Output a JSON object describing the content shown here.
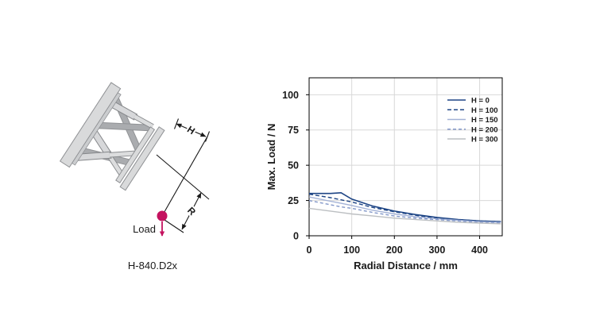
{
  "diagram": {
    "caption": "H-840.D2x",
    "load_label": "Load",
    "dim_h_label": "H",
    "dim_r_label": "R",
    "accent_color": "#c4125f",
    "body_fill": "#d9dadb",
    "body_stroke": "#8f9194"
  },
  "chart_data": {
    "type": "line",
    "title": "",
    "xlabel": "Radial Distance / mm",
    "ylabel": "Max. Load / N",
    "xlim": [
      0,
      453
    ],
    "ylim": [
      0,
      112
    ],
    "xticks": [
      0,
      100,
      200,
      300,
      400
    ],
    "yticks": [
      0,
      25,
      50,
      75,
      100
    ],
    "grid": true,
    "grid_color": "#d8d8d8",
    "legend_position": "top-right",
    "x": [
      0,
      50,
      75,
      100,
      150,
      200,
      250,
      300,
      350,
      400,
      450
    ],
    "series": [
      {
        "name": "H = 0",
        "color": "#1e4585",
        "dash": "",
        "width": 1.6,
        "values": [
          30,
          30,
          30.5,
          26,
          21,
          17.5,
          15,
          13,
          11.5,
          10.5,
          10
        ]
      },
      {
        "name": "H = 100",
        "color": "#1e4585",
        "dash": "5,3",
        "width": 1.4,
        "values": [
          29.5,
          27,
          25.5,
          24,
          20,
          17,
          14.5,
          12.5,
          11.5,
          10.5,
          10
        ]
      },
      {
        "name": "H = 150",
        "color": "#a3b2d6",
        "dash": "",
        "width": 1.4,
        "values": [
          27.5,
          24.5,
          23,
          21.5,
          18,
          15.5,
          13.5,
          12,
          11,
          10,
          9.5
        ]
      },
      {
        "name": "H = 200",
        "color": "#8297c9",
        "dash": "4,3",
        "width": 1.4,
        "values": [
          25,
          22,
          20.5,
          19.5,
          16.5,
          14,
          12.5,
          11.5,
          10.5,
          9.5,
          9
        ]
      },
      {
        "name": "H = 300",
        "color": "#bcbfc2",
        "dash": "",
        "width": 1.4,
        "values": [
          19.5,
          17.5,
          16.5,
          15.5,
          14,
          12.5,
          11.5,
          10.5,
          9.5,
          9,
          8.5
        ]
      }
    ]
  }
}
